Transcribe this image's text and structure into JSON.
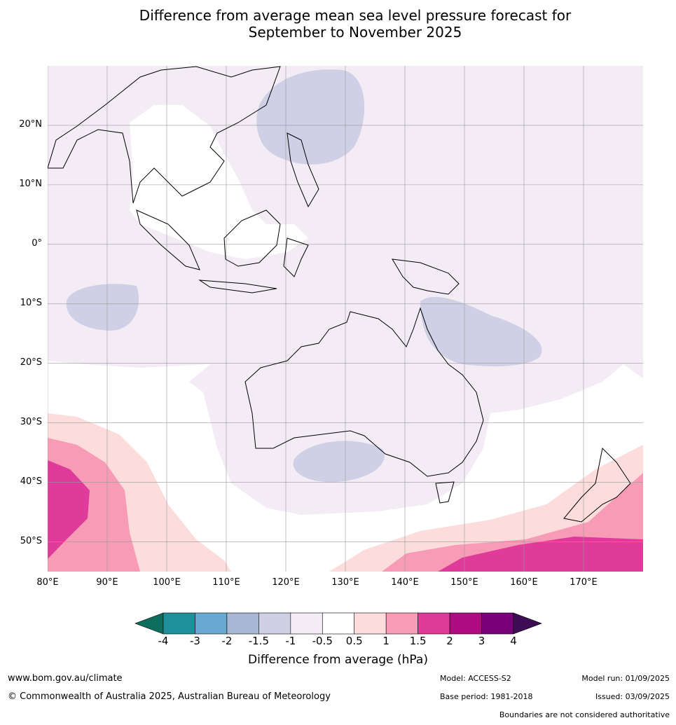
{
  "title_line1": "Difference from average mean sea level pressure forecast for",
  "title_line2": "September to November 2025",
  "lat_labels": [
    "20°N",
    "10°N",
    "0°",
    "10°S",
    "20°S",
    "30°S",
    "40°S",
    "50°S"
  ],
  "lat_values": [
    20,
    10,
    0,
    -10,
    -20,
    -30,
    -40,
    -50
  ],
  "lon_labels": [
    "80°E",
    "90°E",
    "100°E",
    "110°E",
    "120°E",
    "130°E",
    "140°E",
    "150°E",
    "160°E",
    "170°E"
  ],
  "lon_values": [
    80,
    90,
    100,
    110,
    120,
    130,
    140,
    150,
    160,
    170
  ],
  "extent": {
    "lon_min": 80,
    "lon_max": 180,
    "lat_min": -55,
    "lat_max": 30
  },
  "colorbar": {
    "title": "Difference from average (hPa)",
    "tick_labels": [
      "-4",
      "-3",
      "-2",
      "-1.5",
      "-1",
      "-0.5",
      "0.5",
      "1",
      "1.5",
      "2",
      "3",
      "4"
    ],
    "colors": [
      "#0e6e5e",
      "#1f9099",
      "#69a8d0",
      "#a6b6d3",
      "#cfd0e5",
      "#f3ecf5",
      "#ffffff",
      "#fddcdc",
      "#f89bb6",
      "#de3b9b",
      "#ad0b80",
      "#78007a",
      "#3e0d55"
    ]
  },
  "footer": {
    "website": "www.bom.gov.au/climate",
    "copyright": "© Commonwealth of Australia 2025, Australian Bureau of Meteorology",
    "model": "Model: ACCESS-S2",
    "base_period": "Base period: 1981-2018",
    "model_run": "Model run: 01/09/2025",
    "issued": "Issued: 03/09/2025",
    "disclaimer": "Boundaries are not considered authoritative"
  }
}
